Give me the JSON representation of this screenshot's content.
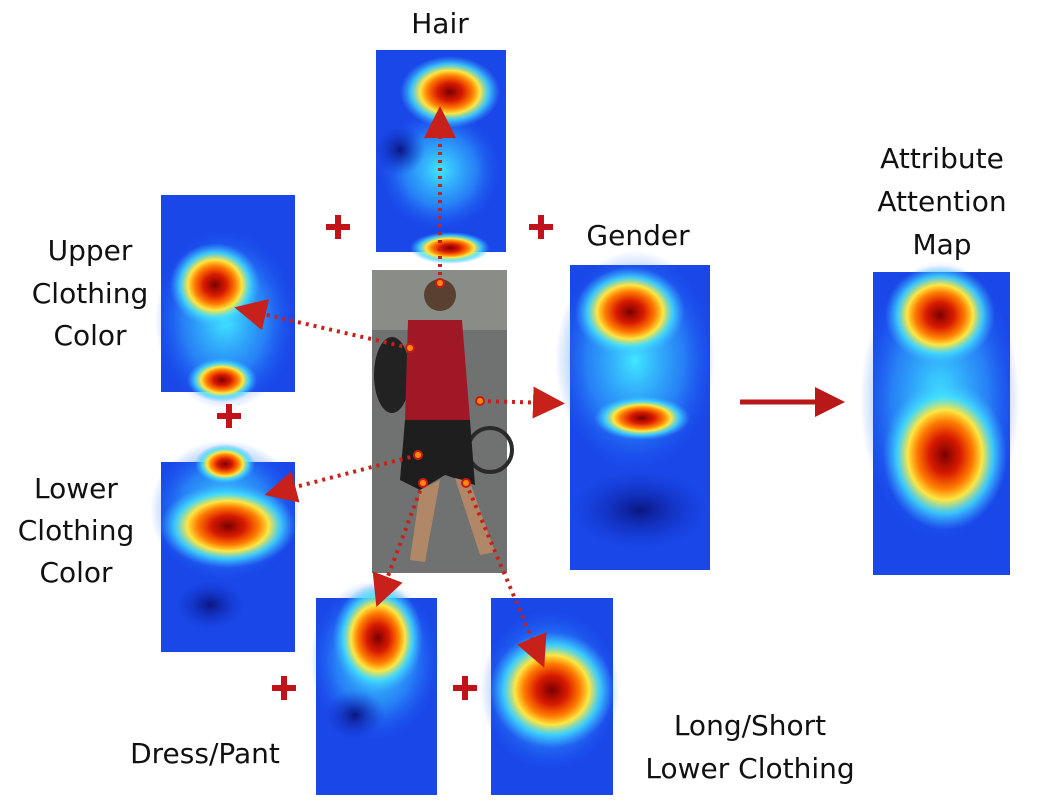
{
  "nodes": [
    {
      "label": [
        "Hair"
      ]
    },
    {
      "label": [
        "Upper",
        "Clothing",
        "Color"
      ]
    },
    {
      "label": [
        "Lower",
        "Clothing",
        "Color"
      ]
    },
    {
      "label": [
        "Gender"
      ]
    },
    {
      "label": [
        "Attribute",
        "Attention",
        "Map"
      ]
    },
    {
      "label": [
        "Dress/Pant"
      ]
    },
    {
      "label": [
        "Long/Short",
        "Lower Clothing"
      ]
    }
  ]
}
